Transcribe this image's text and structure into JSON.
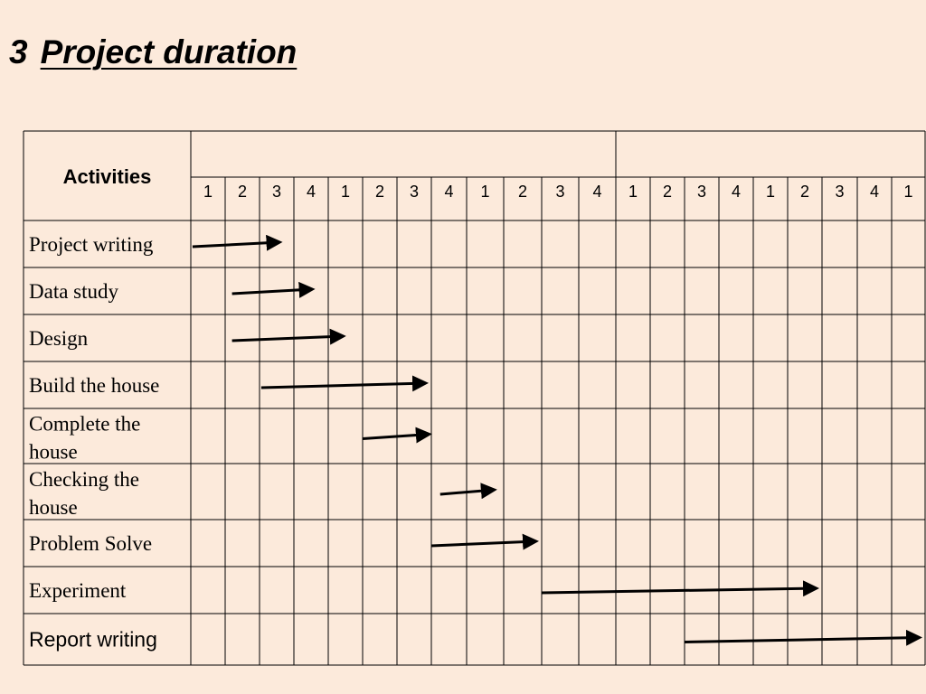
{
  "slide": {
    "number": "3",
    "title": "Project duration"
  },
  "table": {
    "header_label": "Activities",
    "group_headers": [
      "",
      ""
    ],
    "column_numbers": [
      "1",
      "2",
      "3",
      "4",
      "1",
      "2",
      "3",
      "4",
      "1",
      "2",
      "3",
      "4",
      "1",
      "2",
      "3",
      "4",
      "1",
      "2",
      "3",
      "4",
      "1"
    ],
    "activities": [
      {
        "label_lines": [
          "Project writing"
        ],
        "style": "serif"
      },
      {
        "label_lines": [
          "Data study"
        ],
        "style": "serif"
      },
      {
        "label_lines": [
          "Design"
        ],
        "style": "serif"
      },
      {
        "label_lines": [
          "Build the house"
        ],
        "style": "serif"
      },
      {
        "label_lines": [
          "Complete the",
          "house"
        ],
        "style": "serif"
      },
      {
        "label_lines": [
          "Checking the",
          "house"
        ],
        "style": "serif"
      },
      {
        "label_lines": [
          "Problem Solve"
        ],
        "style": "serif"
      },
      {
        "label_lines": [
          "Experiment"
        ],
        "style": "serif"
      },
      {
        "label_lines": [
          "Report writing"
        ],
        "style": "sans"
      }
    ],
    "tasks": [
      {
        "start": 0.05,
        "end": 2.75
      },
      {
        "start": 1.2,
        "end": 3.7
      },
      {
        "start": 1.2,
        "end": 4.6
      },
      {
        "start": 2.05,
        "end": 7.0
      },
      {
        "start": 5.0,
        "end": 7.1
      },
      {
        "start": 7.25,
        "end": 8.9
      },
      {
        "start": 7.0,
        "end": 10.0
      },
      {
        "start": 10.0,
        "end": 18.0
      },
      {
        "start": 14.0,
        "end": 21.0
      }
    ]
  }
}
